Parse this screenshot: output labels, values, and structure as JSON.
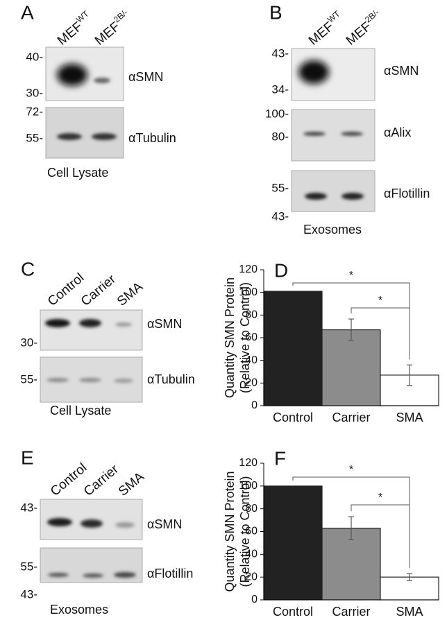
{
  "panels": {
    "A": {
      "label": "A",
      "lanes": [
        {
          "text": "MEF",
          "sup": "WT"
        },
        {
          "text": "MEF",
          "sup": "2B/-"
        }
      ],
      "markers": [
        "40-",
        "30-",
        "72-",
        "55-"
      ],
      "antibodies": [
        "αSMN",
        "αTubulin"
      ],
      "caption": "Cell Lysate"
    },
    "B": {
      "label": "B",
      "lanes": [
        {
          "text": "MEF",
          "sup": "WT"
        },
        {
          "text": "MEF",
          "sup": "2B/-"
        }
      ],
      "markers": [
        "43-",
        "34-",
        "100-",
        "80-",
        "55-",
        "43-"
      ],
      "antibodies": [
        "αSMN",
        "αAlix",
        "αFlotillin"
      ],
      "caption": "Exosomes"
    },
    "C": {
      "label": "C",
      "lanes": [
        {
          "text": "Control"
        },
        {
          "text": "Carrier"
        },
        {
          "text": "SMA"
        }
      ],
      "markers": [
        "30-",
        "55-"
      ],
      "antibodies": [
        "αSMN",
        "αTubulin"
      ],
      "caption": "Cell Lysate"
    },
    "E": {
      "label": "E",
      "lanes": [
        {
          "text": "Control"
        },
        {
          "text": "Carrier"
        },
        {
          "text": "SMA"
        }
      ],
      "markers": [
        "43-",
        "55-",
        "43-"
      ],
      "antibodies": [
        "αSMN",
        "αFlotillin"
      ],
      "caption": "Exosomes"
    }
  },
  "chart_data": [
    {
      "type": "bar",
      "label": "D",
      "y_label": [
        "Quantity SMN Protein",
        "(Relative to Control)"
      ],
      "categories": [
        "Control",
        "Carrier",
        "SMA"
      ],
      "values": [
        101,
        67,
        27
      ],
      "errors": [
        null,
        9.5,
        9
      ],
      "colors": [
        "#222222",
        "#8c8c8c",
        "#ffffff"
      ],
      "ylim": [
        0,
        120
      ],
      "yticks": [
        0,
        20,
        40,
        60,
        80,
        100,
        120
      ],
      "annotations": [
        "*",
        "*"
      ]
    },
    {
      "type": "bar",
      "label": "F",
      "y_label": [
        "Quantity SMN Protein",
        "(Relative to Control)"
      ],
      "categories": [
        "Control",
        "Carrier",
        "SMA"
      ],
      "values": [
        100,
        63,
        20
      ],
      "errors": [
        null,
        10,
        3
      ],
      "colors": [
        "#222222",
        "#8c8c8c",
        "#ffffff"
      ],
      "ylim": [
        0,
        120
      ],
      "yticks": [
        0,
        20,
        40,
        60,
        80,
        100,
        120
      ],
      "annotations": [
        "*",
        "*"
      ]
    }
  ]
}
